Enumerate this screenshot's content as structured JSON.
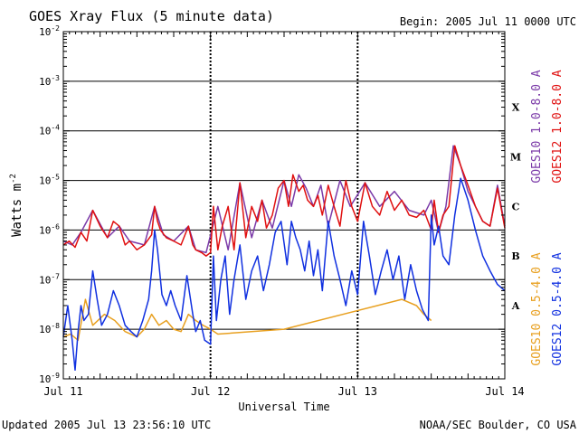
{
  "chart_data": {
    "type": "line",
    "title": "GOES Xray Flux (5 minute data)",
    "begin_label": "Begin:  2005 Jul 11 0000 UTC",
    "xlabel": "Universal Time",
    "ylabel": "Watts m",
    "ylabel_sup": "-2",
    "x_ticks": [
      "Jul 11",
      "Jul 12",
      "Jul 13",
      "Jul 14"
    ],
    "xlim_days": [
      0,
      3
    ],
    "y_scale": "log",
    "ylim": [
      1e-09,
      0.01
    ],
    "y_ticks": [
      {
        "base": "10",
        "exp": "-2",
        "value": 0.01
      },
      {
        "base": "10",
        "exp": "-3",
        "value": 0.001
      },
      {
        "base": "10",
        "exp": "-4",
        "value": 0.0001
      },
      {
        "base": "10",
        "exp": "-5",
        "value": 1e-05
      },
      {
        "base": "10",
        "exp": "-6",
        "value": 1e-06
      },
      {
        "base": "10",
        "exp": "-7",
        "value": 1e-07
      },
      {
        "base": "10",
        "exp": "-8",
        "value": 1e-08
      },
      {
        "base": "10",
        "exp": "-9",
        "value": 1e-09
      }
    ],
    "flare_classes": [
      {
        "label": "X",
        "value": 0.0003
      },
      {
        "label": "M",
        "value": 3e-05
      },
      {
        "label": "C",
        "value": 3e-06
      },
      {
        "label": "B",
        "value": 3e-07
      },
      {
        "label": "A",
        "value": 3e-08
      }
    ],
    "grid": true,
    "series": [
      {
        "name": "GOES10 1.0-8.0 A",
        "color": "#7b3aa8",
        "x": [
          0,
          0.06,
          0.12,
          0.2,
          0.3,
          0.38,
          0.45,
          0.55,
          0.62,
          0.68,
          0.75,
          0.85,
          0.9,
          0.97,
          1.05,
          1.12,
          1.2,
          1.28,
          1.35,
          1.42,
          1.5,
          1.55,
          1.6,
          1.65,
          1.7,
          1.75,
          1.8,
          1.88,
          1.95,
          2.05,
          2.15,
          2.25,
          2.35,
          2.45,
          2.5,
          2.55,
          2.6,
          2.65,
          2.7,
          2.75,
          2.8,
          2.85,
          2.9,
          2.95,
          3.0
        ],
        "y": [
          6e-07,
          5e-07,
          9e-07,
          2.5e-06,
          7e-07,
          1.2e-06,
          6e-07,
          5e-07,
          3e-06,
          8e-07,
          6e-07,
          1.2e-06,
          4e-07,
          3.5e-07,
          3e-06,
          4e-07,
          9e-06,
          7e-07,
          4e-06,
          1.1e-06,
          1e-05,
          3e-06,
          1.3e-05,
          7e-06,
          3e-06,
          8e-06,
          1.2e-06,
          1e-05,
          3e-06,
          9e-06,
          3e-06,
          6e-06,
          2.5e-06,
          2e-06,
          4e-06,
          9e-07,
          3e-06,
          5e-05,
          2e-05,
          6e-06,
          3e-06,
          1.5e-06,
          1.2e-06,
          8e-06,
          1.2e-06
        ]
      },
      {
        "name": "GOES12 1.0-8.0 A",
        "color": "#e01010",
        "x": [
          0,
          0.04,
          0.08,
          0.12,
          0.16,
          0.2,
          0.25,
          0.3,
          0.34,
          0.38,
          0.42,
          0.45,
          0.5,
          0.55,
          0.6,
          0.62,
          0.64,
          0.66,
          0.7,
          0.75,
          0.8,
          0.85,
          0.88,
          0.9,
          0.94,
          0.97,
          1.0,
          1.02,
          1.05,
          1.08,
          1.12,
          1.16,
          1.2,
          1.24,
          1.28,
          1.32,
          1.35,
          1.38,
          1.42,
          1.46,
          1.5,
          1.53,
          1.56,
          1.6,
          1.63,
          1.66,
          1.7,
          1.73,
          1.76,
          1.8,
          1.84,
          1.88,
          1.92,
          1.96,
          2.0,
          2.05,
          2.1,
          2.15,
          2.2,
          2.25,
          2.3,
          2.35,
          2.4,
          2.45,
          2.5,
          2.52,
          2.55,
          2.58,
          2.62,
          2.66,
          2.7,
          2.75,
          2.8,
          2.85,
          2.9,
          2.95,
          3.0
        ],
        "y": [
          5e-07,
          6e-07,
          4.5e-07,
          9e-07,
          6e-07,
          2.5e-06,
          1.2e-06,
          7e-07,
          1.5e-06,
          1.2e-06,
          5e-07,
          6e-07,
          4e-07,
          5e-07,
          8e-07,
          3e-06,
          1.5e-06,
          1e-06,
          7e-07,
          6e-07,
          5e-07,
          1.2e-06,
          5e-07,
          4e-07,
          3.5e-07,
          3e-07,
          3.5e-07,
          3e-06,
          4e-07,
          1.2e-06,
          3e-06,
          4e-07,
          9e-06,
          7e-07,
          3e-06,
          1.5e-06,
          4e-06,
          1.1e-06,
          2e-06,
          7e-06,
          1e-05,
          3e-06,
          1.3e-05,
          6e-06,
          8e-06,
          4e-06,
          3e-06,
          5e-06,
          2e-06,
          8e-06,
          3e-06,
          1.2e-06,
          1e-05,
          3e-06,
          1.5e-06,
          9e-06,
          3e-06,
          2e-06,
          6e-06,
          2.5e-06,
          4e-06,
          2e-06,
          1.8e-06,
          2.5e-06,
          1e-06,
          4e-06,
          9e-07,
          2e-06,
          3e-06,
          5e-05,
          2e-05,
          8e-06,
          3e-06,
          1.5e-06,
          1.2e-06,
          7e-06,
          1.1e-06
        ]
      },
      {
        "name": "GOES10 0.5-4.0 A",
        "color": "#e8a020",
        "x": [
          0,
          0.05,
          0.1,
          0.15,
          0.2,
          0.28,
          0.35,
          0.42,
          0.5,
          0.55,
          0.6,
          0.65,
          0.7,
          0.75,
          0.8,
          0.85,
          0.9,
          0.95,
          1.0,
          1.05,
          1.5,
          2.3,
          2.4,
          2.45,
          2.5
        ],
        "y": [
          7e-09,
          8e-09,
          6e-09,
          4e-08,
          1.2e-08,
          2e-08,
          1.5e-08,
          9e-09,
          7e-09,
          1e-08,
          2e-08,
          1.2e-08,
          1.5e-08,
          1e-08,
          9e-09,
          2e-08,
          1.5e-08,
          1.2e-08,
          1e-08,
          8e-09,
          1e-08,
          4e-08,
          3e-08,
          2e-08,
          1.5e-08
        ]
      },
      {
        "name": "GOES12 0.5-4.0 A",
        "color": "#1030e0",
        "x": [
          0,
          0.03,
          0.06,
          0.08,
          0.1,
          0.12,
          0.14,
          0.17,
          0.2,
          0.23,
          0.26,
          0.3,
          0.34,
          0.38,
          0.42,
          0.46,
          0.5,
          0.54,
          0.58,
          0.6,
          0.62,
          0.64,
          0.67,
          0.7,
          0.73,
          0.76,
          0.8,
          0.84,
          0.88,
          0.9,
          0.93,
          0.96,
          1.0,
          1.02,
          1.04,
          1.07,
          1.1,
          1.13,
          1.16,
          1.2,
          1.24,
          1.28,
          1.32,
          1.36,
          1.4,
          1.44,
          1.48,
          1.52,
          1.55,
          1.58,
          1.61,
          1.64,
          1.67,
          1.7,
          1.73,
          1.76,
          1.8,
          1.84,
          1.88,
          1.92,
          1.96,
          2.0,
          2.04,
          2.08,
          2.12,
          2.16,
          2.2,
          2.24,
          2.28,
          2.32,
          2.36,
          2.4,
          2.44,
          2.48,
          2.5,
          2.52,
          2.55,
          2.58,
          2.62,
          2.66,
          2.7,
          2.75,
          2.8,
          2.85,
          2.9,
          2.95,
          3.0
        ],
        "y": [
          7e-09,
          3e-08,
          6e-09,
          1.5e-09,
          9e-09,
          3e-08,
          1.5e-08,
          2e-08,
          1.5e-07,
          4e-08,
          1.2e-08,
          2e-08,
          6e-08,
          3e-08,
          1.2e-08,
          9e-09,
          7e-09,
          1.5e-08,
          4e-08,
          1.5e-07,
          1e-06,
          4e-07,
          5e-08,
          3e-08,
          6e-08,
          3e-08,
          1.5e-08,
          1.2e-07,
          2e-08,
          9e-09,
          1.5e-08,
          6e-09,
          5e-09,
          3e-07,
          1.5e-08,
          1e-07,
          3e-07,
          2e-08,
          1e-07,
          5e-07,
          4e-08,
          1.5e-07,
          3e-07,
          6e-08,
          2e-07,
          9e-07,
          1.5e-06,
          2e-07,
          1.5e-06,
          7e-07,
          4e-07,
          1.5e-07,
          6e-07,
          1.2e-07,
          4e-07,
          6e-08,
          1.5e-06,
          3e-07,
          1e-07,
          3e-08,
          1.5e-07,
          5e-08,
          1.5e-06,
          3e-07,
          5e-08,
          1.5e-07,
          4e-07,
          1e-07,
          3e-07,
          4e-08,
          2e-07,
          6e-08,
          2.5e-08,
          1.5e-08,
          2e-06,
          5e-07,
          1.2e-06,
          3e-07,
          2e-07,
          2e-06,
          1.1e-05,
          4e-06,
          1e-06,
          3e-07,
          1.5e-07,
          8e-08,
          6e-08
        ]
      }
    ]
  },
  "footer": {
    "updated": "Updated 2005 Jul 13 23:56:10 UTC",
    "source": "NOAA/SEC Boulder, CO USA"
  }
}
